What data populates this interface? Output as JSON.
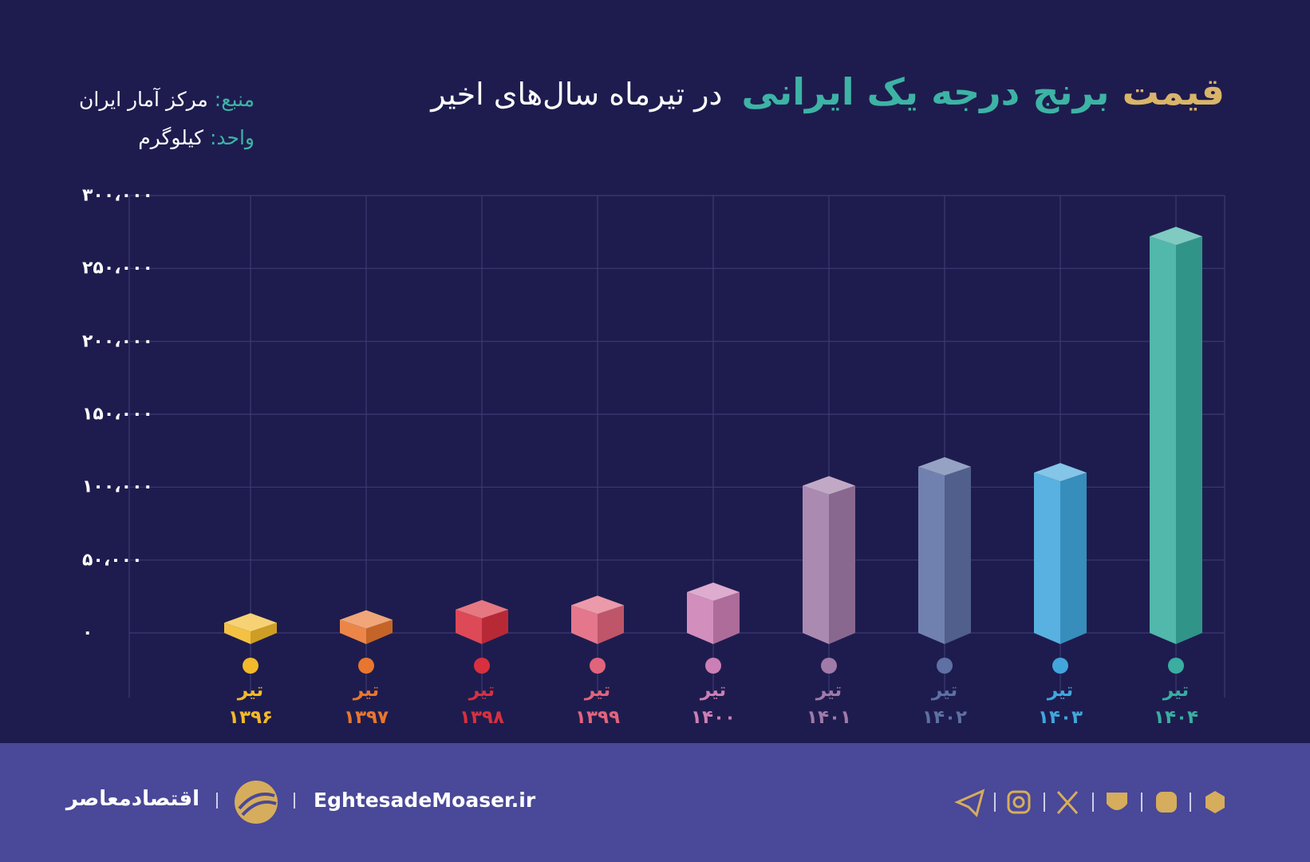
{
  "chart_data": {
    "type": "bar",
    "title_parts": [
      "قیمت",
      "برنج درجه یک ایرانی",
      "در تیرماه سال‌های اخیر"
    ],
    "source_label": "منبع:",
    "source": "مرکز آمار ایران",
    "unit_label": "واحد:",
    "unit": "کیلوگرم",
    "categories": [
      "تیر ۱۳۹۶",
      "تیر ۱۳۹۷",
      "تیر ۱۳۹۸",
      "تیر ۱۳۹۹",
      "تیر ۱۴۰۰",
      "تیر ۱۴۰۱",
      "تیر ۱۴۰۲",
      "تیر ۱۴۰۳",
      "تیر ۱۴۰۴"
    ],
    "values": [
      7000,
      9000,
      16000,
      19000,
      28000,
      101000,
      114000,
      110000,
      272000
    ],
    "colors": [
      "#f2b92a",
      "#e8762f",
      "#d8303f",
      "#e0647c",
      "#cc7fb4",
      "#a07aa8",
      "#5e70a4",
      "#41a6dc",
      "#3aaea0"
    ],
    "ylim": [
      0,
      300000
    ],
    "yticks": [
      {
        "value": 0,
        "label": "۰"
      },
      {
        "value": 50000,
        "label": "۵۰،۰۰۰"
      },
      {
        "value": 100000,
        "label": "۱۰۰،۰۰۰"
      },
      {
        "value": 150000,
        "label": "۱۵۰،۰۰۰"
      },
      {
        "value": 200000,
        "label": "۲۰۰،۰۰۰"
      },
      {
        "value": 250000,
        "label": "۲۵۰،۰۰۰"
      },
      {
        "value": 300000,
        "label": "۳۰۰،۰۰۰"
      }
    ],
    "grid": true
  },
  "footer": {
    "brand": "اقتصادمعاصر",
    "site": "EghtesadeMoaser.ir"
  }
}
